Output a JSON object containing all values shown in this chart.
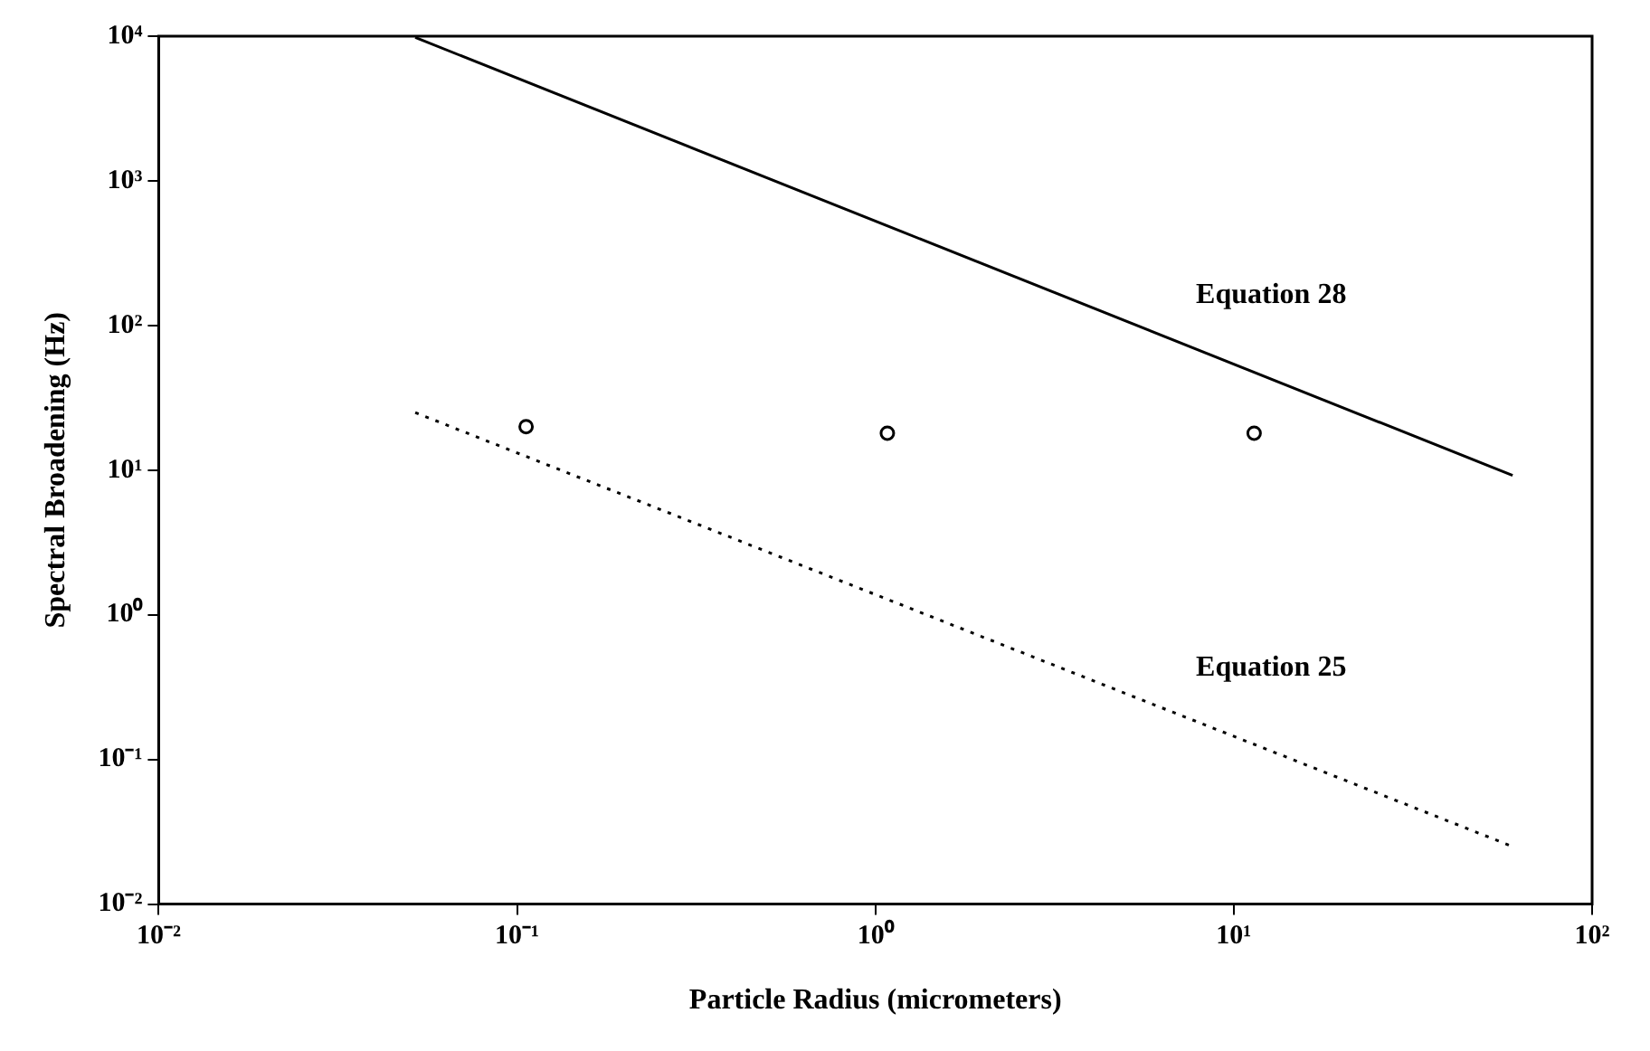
{
  "chart_data": {
    "type": "line",
    "xlabel": "Particle Radius (micrometers)",
    "ylabel": "Spectral Broadening (Hz)",
    "log": "xy",
    "xlim": [
      0.01,
      100
    ],
    "ylim": [
      0.01,
      10000
    ],
    "xticks": [
      {
        "value": 0.01,
        "label": "10⁻²"
      },
      {
        "value": 0.1,
        "label": "10⁻¹"
      },
      {
        "value": 1,
        "label": "10⁰"
      },
      {
        "value": 10,
        "label": "10¹"
      },
      {
        "value": 100,
        "label": "10²"
      }
    ],
    "yticks": [
      {
        "value": 0.01,
        "label": "10⁻²"
      },
      {
        "value": 0.1,
        "label": "10⁻¹"
      },
      {
        "value": 1,
        "label": "10⁰"
      },
      {
        "value": 10,
        "label": "10¹"
      },
      {
        "value": 100,
        "label": "10²"
      },
      {
        "value": 1000,
        "label": "10³"
      },
      {
        "value": 10000,
        "label": "10⁴"
      }
    ],
    "grid": false,
    "series": [
      {
        "name": "Equation 28",
        "color": "#000000",
        "x": [
          0.052,
          60
        ],
        "values": [
          9800,
          9.2
        ],
        "line_style": "solid",
        "marker": "none"
      },
      {
        "name": "Equation 25",
        "color": "#000000",
        "x": [
          0.052,
          60
        ],
        "values": [
          25,
          0.025
        ],
        "line_style": "dotted",
        "marker": "none"
      },
      {
        "type": "scatter",
        "color": "#000000",
        "x": [
          0.106,
          1.08,
          11.4
        ],
        "values": [
          20,
          18,
          18
        ],
        "marker": "circle"
      }
    ]
  }
}
